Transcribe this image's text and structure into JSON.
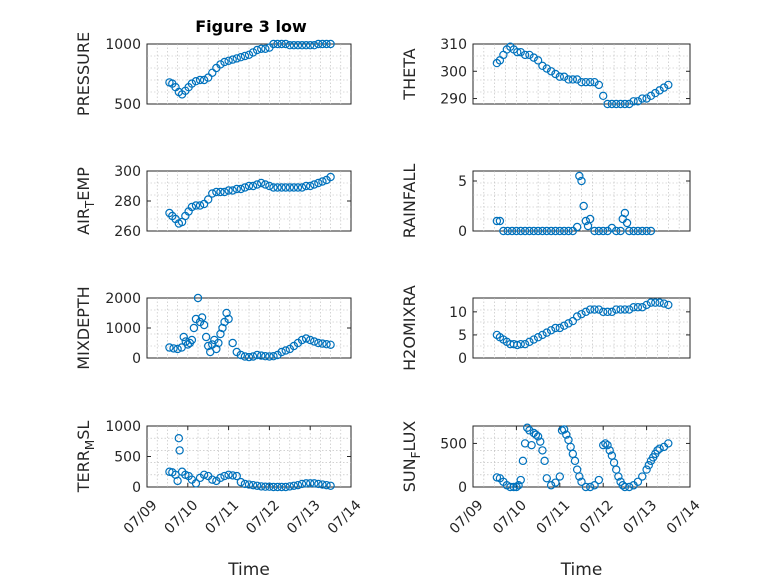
{
  "figure": {
    "title": "Figure 3 low",
    "marker_color": "#0072BD"
  },
  "chart_data": [
    {
      "type": "scatter",
      "id": "pressure",
      "ylabel": "PRESSURE",
      "xlabel": "",
      "xlim": [
        0,
        5
      ],
      "ylim": [
        500,
        1000
      ],
      "yticks": [
        500,
        1000
      ],
      "xticks": [],
      "grid": true,
      "x": [
        0.55,
        0.62,
        0.7,
        0.78,
        0.86,
        0.94,
        1.02,
        1.1,
        1.2,
        1.3,
        1.4,
        1.5,
        1.6,
        1.7,
        1.8,
        1.9,
        2.0,
        2.1,
        2.2,
        2.3,
        2.4,
        2.5,
        2.6,
        2.7,
        2.8,
        2.9,
        3.0,
        3.1,
        3.2,
        3.3,
        3.4,
        3.5,
        3.6,
        3.7,
        3.8,
        3.9,
        4.0,
        4.1,
        4.2,
        4.3,
        4.4,
        4.5
      ],
      "y": [
        680,
        670,
        640,
        600,
        580,
        610,
        640,
        670,
        690,
        700,
        700,
        720,
        760,
        800,
        830,
        850,
        860,
        870,
        880,
        890,
        900,
        910,
        930,
        950,
        960,
        960,
        970,
        1000,
        1000,
        1000,
        1000,
        990,
        990,
        990,
        990,
        990,
        990,
        990,
        1000,
        1000,
        1000,
        1000
      ]
    },
    {
      "type": "scatter",
      "id": "theta",
      "ylabel": "THETA",
      "xlabel": "",
      "xlim": [
        0,
        5
      ],
      "ylim": [
        288,
        310
      ],
      "yticks": [
        290,
        300,
        310
      ],
      "xticks": [],
      "grid": true,
      "x": [
        0.55,
        0.62,
        0.7,
        0.78,
        0.86,
        0.94,
        1.02,
        1.1,
        1.2,
        1.3,
        1.4,
        1.5,
        1.6,
        1.7,
        1.8,
        1.9,
        2.0,
        2.1,
        2.2,
        2.3,
        2.4,
        2.5,
        2.6,
        2.7,
        2.8,
        2.9,
        3.0,
        3.1,
        3.2,
        3.3,
        3.4,
        3.5,
        3.6,
        3.7,
        3.8,
        3.9,
        4.0,
        4.1,
        4.2,
        4.3,
        4.4,
        4.5
      ],
      "y": [
        303,
        304,
        306,
        308,
        309,
        308,
        307,
        307,
        306,
        306,
        305,
        304,
        302,
        301,
        300,
        299,
        298,
        298,
        297,
        297,
        297,
        296,
        296,
        296,
        296,
        295,
        291,
        288,
        288,
        288,
        288,
        288,
        288,
        289,
        289,
        290,
        290,
        291,
        292,
        293,
        294,
        295
      ]
    },
    {
      "type": "scatter",
      "id": "air-temp",
      "ylabel": "AIR_TEMP",
      "xlabel": "",
      "xlim": [
        0,
        5
      ],
      "ylim": [
        260,
        300
      ],
      "yticks": [
        260,
        280,
        300
      ],
      "xticks": [],
      "grid": true,
      "x": [
        0.55,
        0.62,
        0.7,
        0.78,
        0.86,
        0.94,
        1.02,
        1.1,
        1.2,
        1.3,
        1.4,
        1.5,
        1.6,
        1.7,
        1.8,
        1.9,
        2.0,
        2.1,
        2.2,
        2.3,
        2.4,
        2.5,
        2.6,
        2.7,
        2.8,
        2.9,
        3.0,
        3.1,
        3.2,
        3.3,
        3.4,
        3.5,
        3.6,
        3.7,
        3.8,
        3.9,
        4.0,
        4.1,
        4.2,
        4.3,
        4.4,
        4.5
      ],
      "y": [
        272,
        270,
        268,
        265,
        266,
        270,
        273,
        276,
        277,
        277,
        278,
        281,
        285,
        286,
        286,
        286,
        287,
        287,
        288,
        288,
        289,
        290,
        290,
        291,
        292,
        291,
        290,
        289,
        289,
        289,
        289,
        289,
        289,
        289,
        289,
        290,
        290,
        291,
        292,
        293,
        294,
        296
      ]
    },
    {
      "type": "scatter",
      "id": "rainfall",
      "ylabel": "RAINFALL",
      "xlabel": "",
      "xlim": [
        0,
        5
      ],
      "ylim": [
        0,
        6
      ],
      "yticks": [
        0,
        5
      ],
      "xticks": [],
      "grid": true,
      "x": [
        0.55,
        0.62,
        0.7,
        0.8,
        0.9,
        1.0,
        1.1,
        1.2,
        1.3,
        1.4,
        1.5,
        1.6,
        1.7,
        1.8,
        1.9,
        2.0,
        2.1,
        2.2,
        2.3,
        2.4,
        2.45,
        2.5,
        2.55,
        2.6,
        2.65,
        2.7,
        2.8,
        2.9,
        3.0,
        3.1,
        3.2,
        3.3,
        3.4,
        3.45,
        3.5,
        3.55,
        3.6,
        3.7,
        3.8,
        3.9,
        4.0,
        4.1
      ],
      "y": [
        1.0,
        1.0,
        0,
        0,
        0,
        0,
        0,
        0,
        0,
        0,
        0,
        0,
        0,
        0,
        0,
        0,
        0,
        0,
        0,
        0.4,
        5.5,
        5.0,
        2.5,
        1.0,
        0.5,
        1.2,
        0,
        0,
        0,
        0,
        0.3,
        0,
        0,
        1.2,
        1.8,
        0.8,
        0,
        0,
        0,
        0,
        0,
        0
      ]
    },
    {
      "type": "scatter",
      "id": "mixdepth",
      "ylabel": "MIXDEPTH",
      "xlabel": "",
      "xlim": [
        0,
        5
      ],
      "ylim": [
        0,
        2000
      ],
      "yticks": [
        0,
        1000,
        2000
      ],
      "xticks": [],
      "grid": true,
      "x": [
        0.55,
        0.65,
        0.75,
        0.85,
        0.9,
        0.95,
        1.0,
        1.05,
        1.1,
        1.15,
        1.2,
        1.25,
        1.3,
        1.35,
        1.4,
        1.45,
        1.5,
        1.55,
        1.6,
        1.65,
        1.7,
        1.75,
        1.8,
        1.85,
        1.9,
        1.95,
        2.0,
        2.1,
        2.2,
        2.3,
        2.4,
        2.5,
        2.6,
        2.7,
        2.8,
        2.9,
        3.0,
        3.1,
        3.2,
        3.3,
        3.4,
        3.5,
        3.6,
        3.7,
        3.8,
        3.9,
        4.0,
        4.1,
        4.2,
        4.3,
        4.4,
        4.5
      ],
      "y": [
        350,
        320,
        300,
        350,
        700,
        550,
        450,
        500,
        600,
        1000,
        1300,
        2000,
        1200,
        1350,
        1100,
        700,
        400,
        200,
        450,
        600,
        300,
        500,
        800,
        1000,
        1200,
        1500,
        1300,
        500,
        200,
        100,
        50,
        30,
        50,
        100,
        80,
        60,
        50,
        60,
        100,
        200,
        250,
        300,
        400,
        500,
        600,
        650,
        600,
        550,
        500,
        480,
        460,
        440
      ]
    },
    {
      "type": "scatter",
      "id": "h2omixra",
      "ylabel": "H2OMIXRA",
      "xlabel": "",
      "xlim": [
        0,
        5
      ],
      "ylim": [
        0,
        13
      ],
      "yticks": [
        0,
        5,
        10
      ],
      "xticks": [],
      "grid": true,
      "x": [
        0.55,
        0.62,
        0.7,
        0.78,
        0.86,
        0.94,
        1.02,
        1.1,
        1.2,
        1.3,
        1.4,
        1.5,
        1.6,
        1.7,
        1.8,
        1.9,
        2.0,
        2.1,
        2.2,
        2.3,
        2.4,
        2.5,
        2.6,
        2.7,
        2.8,
        2.9,
        3.0,
        3.1,
        3.2,
        3.3,
        3.4,
        3.5,
        3.6,
        3.7,
        3.8,
        3.9,
        4.0,
        4.1,
        4.2,
        4.3,
        4.4,
        4.5
      ],
      "y": [
        5.0,
        4.5,
        4.0,
        3.5,
        3.0,
        3.0,
        2.8,
        3.0,
        3.0,
        3.5,
        4.0,
        4.5,
        5.0,
        5.5,
        6.0,
        6.5,
        6.5,
        7.0,
        7.5,
        8.0,
        9.0,
        9.5,
        10.0,
        10.5,
        10.5,
        10.5,
        10.0,
        10.0,
        10.0,
        10.5,
        10.5,
        10.5,
        10.5,
        11.0,
        11.0,
        11.0,
        11.5,
        12.0,
        12.0,
        12.0,
        11.8,
        11.5
      ]
    },
    {
      "type": "scatter",
      "id": "terr-msl",
      "ylabel": "TERR_MSL",
      "xlabel": "Time",
      "xlim": [
        0,
        5
      ],
      "ylim": [
        0,
        1000
      ],
      "yticks": [
        0,
        500,
        1000
      ],
      "xticks": [
        0,
        1,
        2,
        3,
        4,
        5
      ],
      "xticklabels": [
        "07/09",
        "07/10",
        "07/11",
        "07/12",
        "07/13",
        "07/14"
      ],
      "grid": true,
      "x": [
        0.55,
        0.62,
        0.7,
        0.75,
        0.78,
        0.8,
        0.86,
        0.94,
        1.02,
        1.1,
        1.2,
        1.3,
        1.4,
        1.5,
        1.6,
        1.7,
        1.8,
        1.9,
        2.0,
        2.1,
        2.2,
        2.3,
        2.4,
        2.5,
        2.6,
        2.7,
        2.8,
        2.9,
        3.0,
        3.1,
        3.2,
        3.3,
        3.4,
        3.5,
        3.6,
        3.7,
        3.8,
        3.9,
        4.0,
        4.1,
        4.2,
        4.3,
        4.4,
        4.5
      ],
      "y": [
        250,
        240,
        200,
        100,
        800,
        600,
        250,
        200,
        180,
        120,
        60,
        150,
        200,
        180,
        120,
        100,
        150,
        180,
        200,
        190,
        180,
        80,
        50,
        40,
        30,
        20,
        10,
        5,
        5,
        0,
        0,
        0,
        0,
        10,
        20,
        30,
        50,
        60,
        60,
        60,
        50,
        40,
        30,
        20
      ]
    },
    {
      "type": "scatter",
      "id": "sun-flux",
      "ylabel": "SUN_FLUX",
      "xlabel": "Time",
      "xlim": [
        0,
        5
      ],
      "ylim": [
        0,
        700
      ],
      "yticks": [
        0,
        500
      ],
      "xticks": [
        0,
        1,
        2,
        3,
        4,
        5
      ],
      "xticklabels": [
        "07/09",
        "07/10",
        "07/11",
        "07/12",
        "07/13",
        "07/14"
      ],
      "grid": true,
      "x": [
        0.55,
        0.62,
        0.7,
        0.78,
        0.86,
        0.94,
        1.0,
        1.05,
        1.1,
        1.15,
        1.2,
        1.25,
        1.3,
        1.35,
        1.4,
        1.45,
        1.5,
        1.55,
        1.6,
        1.65,
        1.7,
        1.8,
        1.9,
        2.0,
        2.05,
        2.1,
        2.15,
        2.2,
        2.25,
        2.3,
        2.35,
        2.4,
        2.45,
        2.5,
        2.6,
        2.7,
        2.8,
        2.9,
        3.0,
        3.05,
        3.1,
        3.15,
        3.2,
        3.25,
        3.3,
        3.35,
        3.4,
        3.45,
        3.5,
        3.6,
        3.7,
        3.8,
        3.9,
        4.0,
        4.05,
        4.1,
        4.15,
        4.2,
        4.25,
        4.3,
        4.4,
        4.5
      ],
      "y": [
        110,
        100,
        60,
        20,
        0,
        0,
        0,
        20,
        80,
        300,
        500,
        680,
        650,
        480,
        620,
        600,
        580,
        520,
        420,
        300,
        100,
        20,
        50,
        120,
        650,
        660,
        600,
        540,
        460,
        380,
        300,
        200,
        120,
        60,
        0,
        0,
        20,
        80,
        480,
        500,
        480,
        420,
        360,
        280,
        200,
        120,
        60,
        20,
        0,
        0,
        20,
        60,
        120,
        200,
        250,
        300,
        340,
        380,
        420,
        440,
        460,
        500
      ]
    }
  ]
}
